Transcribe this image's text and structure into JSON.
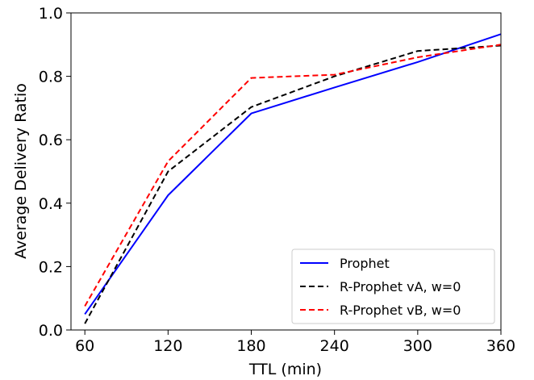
{
  "chart_data": {
    "type": "line",
    "xlabel": "TTL (min)",
    "ylabel": "Average Delivery Ratio",
    "xlim": [
      50,
      360
    ],
    "ylim": [
      0.0,
      1.0
    ],
    "x_ticks": [
      60,
      120,
      180,
      240,
      300,
      360
    ],
    "x_tick_labels": [
      "60",
      "120",
      "180",
      "240",
      "300",
      "360"
    ],
    "y_ticks": [
      0.0,
      0.2,
      0.4,
      0.6,
      0.8,
      1.0
    ],
    "y_tick_labels": [
      "0.0",
      "0.2",
      "0.4",
      "0.6",
      "0.8",
      "1.0"
    ],
    "grid": false,
    "legend_position": "bottom-right",
    "x": [
      60,
      120,
      180,
      240,
      300,
      360
    ],
    "series": [
      {
        "name": "Prophet",
        "values": [
          0.05,
          0.425,
          0.683,
          0.765,
          0.845,
          0.933
        ],
        "color": "#0000ff",
        "style": "solid"
      },
      {
        "name": "R-Prophet vA, w=0",
        "values": [
          0.02,
          0.5,
          0.703,
          0.8,
          0.88,
          0.897
        ],
        "color": "#000000",
        "style": "dashed"
      },
      {
        "name": "R-Prophet vB, w=0",
        "values": [
          0.075,
          0.532,
          0.795,
          0.805,
          0.86,
          0.9
        ],
        "color": "#ff0000",
        "style": "dashed"
      }
    ]
  }
}
